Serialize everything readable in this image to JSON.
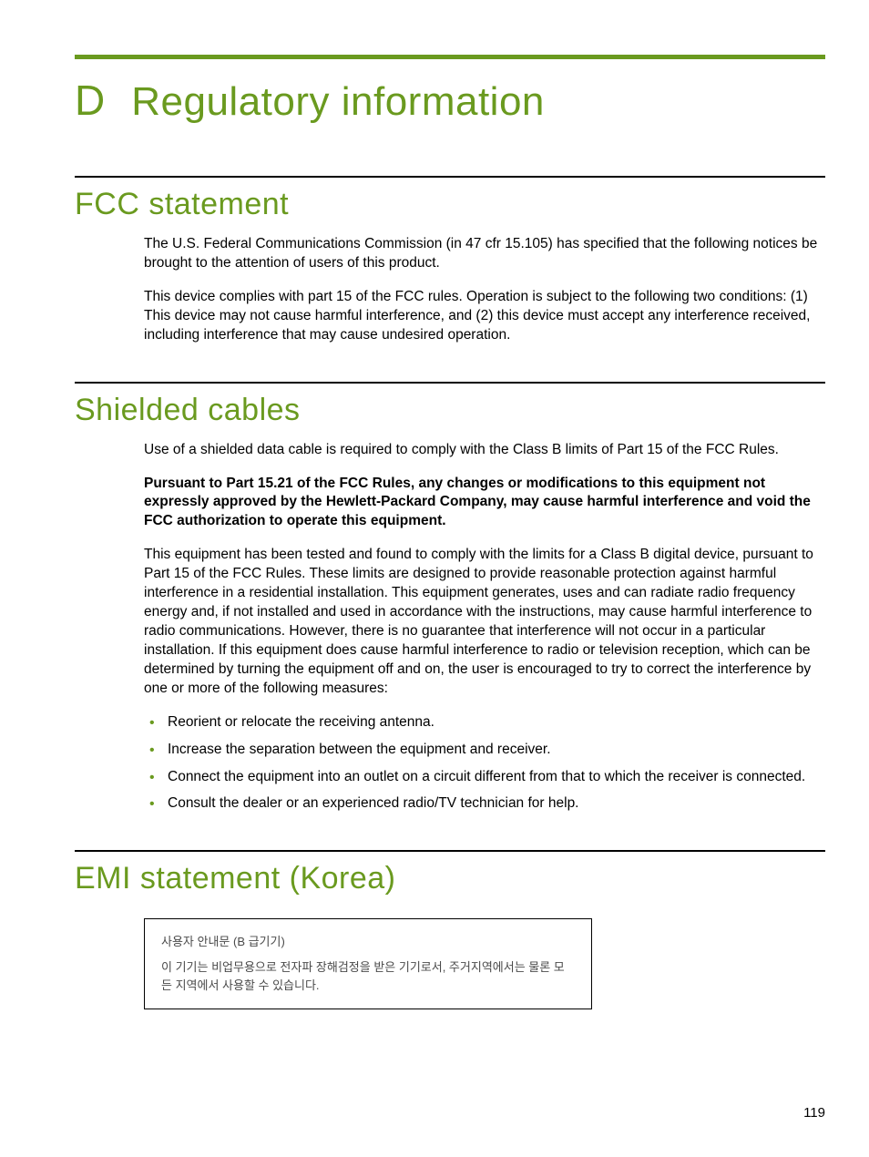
{
  "colors": {
    "accent": "#6a9a1f",
    "rule_top": "#6a9a1f",
    "section_rule": "#000000",
    "body_text": "#000000",
    "korea_text": "#4a4a4a",
    "background": "#ffffff"
  },
  "typography": {
    "appendix_letter_size": 46,
    "appendix_title_size": 44,
    "section_heading_size": 34,
    "body_size": 15.5,
    "korea_size": 13,
    "heading_weight": 300,
    "body_weight": 400,
    "bold_weight": 700
  },
  "appendix": {
    "letter": "D",
    "title": "Regulatory information"
  },
  "sections": {
    "fcc": {
      "heading": "FCC statement",
      "para1": "The U.S. Federal Communications Commission (in 47 cfr 15.105) has specified that the following notices be brought to the attention of users of this product.",
      "para2": "This device complies with part 15 of the FCC rules. Operation is subject to the following two conditions: (1) This device may not cause harmful interference, and (2) this device must accept any interference received, including interference that may cause undesired operation."
    },
    "shielded": {
      "heading": "Shielded cables",
      "para1": "Use of a shielded data cable is required to comply with the Class B limits of Part 15 of the FCC Rules.",
      "bold_para": "Pursuant to Part 15.21 of the FCC Rules, any changes or modifications to this equipment not expressly approved by the Hewlett-Packard Company, may cause harmful interference and void the FCC authorization to operate this equipment.",
      "para2": "This equipment has been tested and found to comply with the limits for a Class B digital device, pursuant to Part 15 of the FCC Rules. These limits are designed to provide reasonable protection against harmful interference in a residential installation. This equipment generates, uses and can radiate radio frequency energy and, if not installed and used in accordance with the instructions, may cause harmful interference to radio communications. However, there is no guarantee that interference will not occur in a particular installation. If this equipment does cause harmful interference to radio or television reception, which can be determined by turning the equipment off and on, the user is encouraged to try to correct the interference by one or more of the following measures:",
      "bullets": [
        "Reorient or relocate the receiving antenna.",
        "Increase the separation between the equipment and receiver.",
        "Connect the equipment into an outlet on a circuit different from that to which the receiver is connected.",
        "Consult the dealer or an experienced radio/TV technician for help."
      ]
    },
    "emi": {
      "heading": "EMI statement (Korea)",
      "box_line1": "사용자 안내문 (B 급기기)",
      "box_line2": "이 기기는 비업무용으로 전자파 장해검정을 받은 기기로서, 주거지역에서는 물론 모든 지역에서 사용할 수 있습니다."
    }
  },
  "page_number": "119"
}
